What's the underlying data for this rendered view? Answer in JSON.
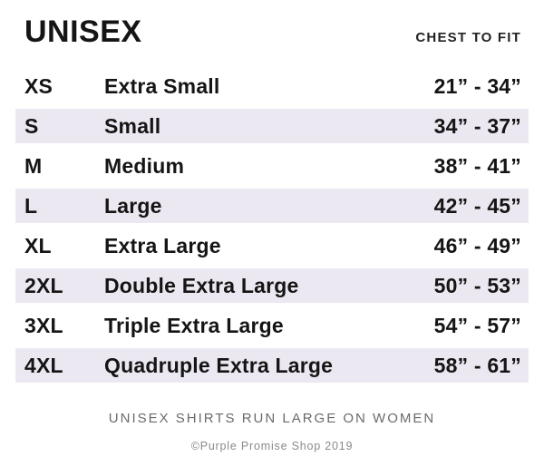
{
  "header": {
    "title": "UNISEX",
    "column_header": "CHEST TO FIT"
  },
  "table": {
    "columns": [
      "size_code",
      "size_name",
      "chest_range"
    ],
    "rows": [
      {
        "code": "XS",
        "name": "Extra Small",
        "range": "21” - 34”",
        "shaded": false
      },
      {
        "code": "S",
        "name": "Small",
        "range": "34” - 37”",
        "shaded": true
      },
      {
        "code": "M",
        "name": "Medium",
        "range": "38” - 41”",
        "shaded": false
      },
      {
        "code": "L",
        "name": "Large",
        "range": "42” - 45”",
        "shaded": true
      },
      {
        "code": "XL",
        "name": "Extra Large",
        "range": "46” - 49”",
        "shaded": false
      },
      {
        "code": "2XL",
        "name": "Double Extra Large",
        "range": "50” - 53”",
        "shaded": true
      },
      {
        "code": "3XL",
        "name": "Triple Extra Large",
        "range": "54” - 57”",
        "shaded": false
      },
      {
        "code": "4XL",
        "name": "Quadruple Extra Large",
        "range": "58” - 61”",
        "shaded": true
      }
    ]
  },
  "footer": {
    "note": "UNISEX SHIRTS RUN LARGE ON WOMEN",
    "copyright": "©Purple Promise Shop 2019"
  },
  "colors": {
    "row_shade": "#ece8f1",
    "text": "#151515",
    "note_gray": "#6b6b6b",
    "copyright_gray": "#8a8a8a"
  }
}
